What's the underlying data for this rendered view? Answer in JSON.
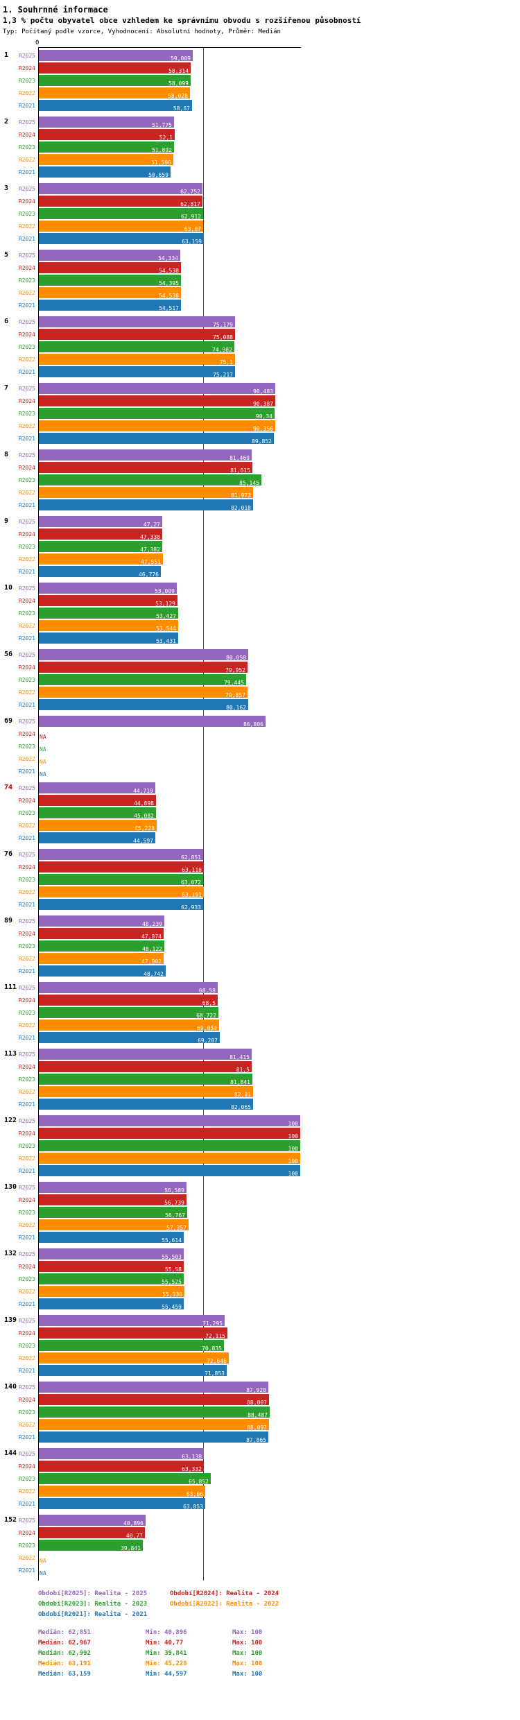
{
  "header": {
    "title": "1. Souhrnné informace",
    "subtitle": "1,3 % počtu obyvatel obce vzhledem ke správnímu obvodu s rozšířenou působností",
    "meta": "Typ: Počítaný podle vzorce, Vyhodnocení: Absolutní hodnoty, Průměr: Medián"
  },
  "chart_data": {
    "type": "bar",
    "orientation": "horizontal",
    "value_axis": {
      "min_label": "0",
      "min": 0,
      "max": 100
    },
    "median_line_value": 62.851,
    "na_value": "NA",
    "highlight_color": "#CC0000",
    "highlighted_category": "74",
    "categories": [
      "1",
      "2",
      "3",
      "5",
      "6",
      "7",
      "8",
      "9",
      "10",
      "56",
      "69",
      "74",
      "76",
      "89",
      "111",
      "113",
      "122",
      "130",
      "132",
      "139",
      "140",
      "144",
      "152"
    ],
    "series": [
      {
        "name": "R2025",
        "color": "#9467BD",
        "values": [
          "59,009",
          "51,775",
          "62,752",
          "54,334",
          "75,179",
          "90,483",
          "81,469",
          "47,27",
          "53,009",
          "80,058",
          "86,806",
          "44,719",
          "62,851",
          "48,239",
          "68,58",
          "81,415",
          "100",
          "56,589",
          "55,503",
          "71,295",
          "87,928",
          "63,138",
          "40,896"
        ]
      },
      {
        "name": "R2024",
        "color": "#CC2222",
        "values": [
          "58,314",
          "52,1",
          "62,817",
          "54,538",
          "75,088",
          "90,387",
          "81,615",
          "47,338",
          "53,129",
          "79,952",
          "NA",
          "44,898",
          "63,118",
          "47,874",
          "68,5",
          "81,5",
          "100",
          "56,739",
          "55,58",
          "72,115",
          "88,007",
          "63,332",
          "40,77"
        ]
      },
      {
        "name": "R2023",
        "color": "#2CA02C",
        "values": [
          "58,099",
          "51,892",
          "62,912",
          "54,395",
          "74,982",
          "90,34",
          "85,145",
          "47,382",
          "53,427",
          "79,445",
          "NA",
          "45,082",
          "63,072",
          "48,122",
          "68,722",
          "81,841",
          "100",
          "56,767",
          "55,525",
          "70,835",
          "88,487",
          "65,852",
          "39,841"
        ]
      },
      {
        "name": "R2022",
        "color": "#FF8C00",
        "values": [
          "58,028",
          "51,596",
          "63,07",
          "54,538",
          "75,1",
          "90,356",
          "81,973",
          "47,551",
          "53,544",
          "79,857",
          "NA",
          "45,228",
          "63,191",
          "47,902",
          "69,054",
          "82,01",
          "100",
          "57,357",
          "55,936",
          "72,646",
          "88,097",
          "63,66",
          "NA"
        ]
      },
      {
        "name": "R2021",
        "color": "#1F77B4",
        "values": [
          "58,67",
          "50,659",
          "63,159",
          "54,517",
          "75,217",
          "89,852",
          "82,018",
          "46,776",
          "53,431",
          "80,162",
          "NA",
          "44,597",
          "62,933",
          "48,742",
          "69,207",
          "82,065",
          "100",
          "55,614",
          "55,459",
          "71,853",
          "87,865",
          "63,853",
          "NA"
        ]
      }
    ]
  },
  "legend": {
    "items": [
      {
        "series": "R2025",
        "label": "Období[R2025]: Realita - 2025"
      },
      {
        "series": "R2024",
        "label": "Období[R2024]: Realita - 2024"
      },
      {
        "series": "R2023",
        "label": "Období[R2023]: Realita - 2023"
      },
      {
        "series": "R2022",
        "label": "Období[R2022]: Realita - 2022"
      },
      {
        "series": "R2021",
        "label": "Období[R2021]: Realita - 2021"
      }
    ]
  },
  "stats": {
    "labels": {
      "median": "Medián",
      "min": "Min",
      "max": "Max"
    },
    "rows": [
      {
        "series": "R2025",
        "median": "62,851",
        "min": "40,896",
        "max": "100"
      },
      {
        "series": "R2024",
        "median": "62,967",
        "min": "40,77",
        "max": "100"
      },
      {
        "series": "R2023",
        "median": "62,992",
        "min": "39,841",
        "max": "100"
      },
      {
        "series": "R2022",
        "median": "63,191",
        "min": "45,228",
        "max": "100"
      },
      {
        "series": "R2021",
        "median": "63,159",
        "min": "44,597",
        "max": "100"
      }
    ]
  }
}
